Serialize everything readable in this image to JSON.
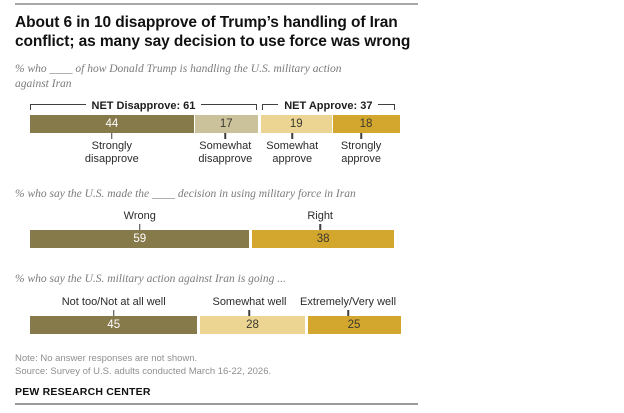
{
  "header": {
    "title": "About 6 in 10 disapprove of Trump’s handling of Iran\nconflict; as many say decision to use force was wrong"
  },
  "chart_data": [
    {
      "type": "bar",
      "subtype": "stacked-horizontal",
      "subtitle": "% who ____ of how Donald Trump is handling the U.S. military action\nagainst Iran",
      "label_position": "below",
      "axis_scale_max": 100,
      "brackets": [
        {
          "label": "NET Disapprove: 61",
          "from": 0,
          "to": 2
        },
        {
          "label": "NET Approve: 37",
          "from": 2,
          "to": 4
        }
      ],
      "gaps_after": [
        1
      ],
      "segments": [
        {
          "label": "Strongly\ndisapprove",
          "value": 44,
          "color": "#86794a",
          "value_color": "#ffffff"
        },
        {
          "label": "Somewhat\ndisapprove",
          "value": 17,
          "color": "#cbc29c",
          "value_color": "#3b3a2e"
        },
        {
          "label": "Somewhat\napprove",
          "value": 19,
          "color": "#ecd492",
          "value_color": "#3b3a2e"
        },
        {
          "label": "Strongly\napprove",
          "value": 18,
          "color": "#d3a62e",
          "value_color": "#3b3a2e"
        }
      ]
    },
    {
      "type": "bar",
      "subtype": "stacked-horizontal",
      "subtitle": "% who say the U.S. made the ____ decision in using military force in Iran",
      "label_position": "above",
      "axis_scale_max": 100,
      "gaps_after": [
        0
      ],
      "segments": [
        {
          "label": "Wrong",
          "value": 59,
          "color": "#86794a",
          "value_color": "#ffffff"
        },
        {
          "label": "Right",
          "value": 38,
          "color": "#d3a62e",
          "value_color": "#3b3a2e"
        }
      ]
    },
    {
      "type": "bar",
      "subtype": "stacked-horizontal",
      "subtitle": "% who say the U.S. military action against Iran is going ...",
      "label_position": "above",
      "axis_scale_max": 100,
      "gaps_after": [
        0,
        1
      ],
      "segments": [
        {
          "label": "Not too/Not at all well",
          "value": 45,
          "color": "#86794a",
          "value_color": "#ffffff"
        },
        {
          "label": "Somewhat well",
          "value": 28,
          "color": "#ecd492",
          "value_color": "#3b3a2e"
        },
        {
          "label": "Extremely/Very well",
          "value": 25,
          "color": "#d3a62e",
          "value_color": "#3b3a2e"
        }
      ]
    }
  ],
  "footer": {
    "note": "Note: No answer responses are not shown.",
    "source": "Source: Survey of U.S. adults conducted March 16-22, 2026.",
    "brand": "PEW RESEARCH CENTER"
  }
}
